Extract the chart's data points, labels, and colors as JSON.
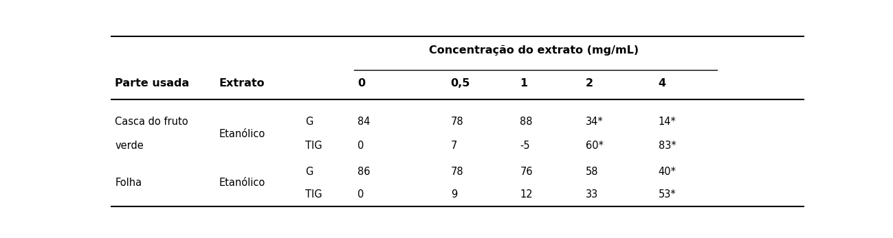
{
  "title": "Concentração do extrato (mg/mL)",
  "col_header_1": "Parte usada",
  "col_header_2": "Extrato",
  "conc_cols": [
    "0",
    "0,5",
    "1",
    "2",
    "4"
  ],
  "rows": [
    {
      "metric": "G",
      "values": [
        "84",
        "78",
        "88",
        "34*",
        "14*"
      ]
    },
    {
      "metric": "TIG",
      "values": [
        "0",
        "7",
        "-5",
        "60*",
        "83*"
      ]
    },
    {
      "metric": "G",
      "values": [
        "86",
        "78",
        "76",
        "58",
        "40*"
      ]
    },
    {
      "metric": "TIG",
      "values": [
        "0",
        "9",
        "12",
        "33",
        "53*"
      ]
    }
  ],
  "parte_texts": [
    "Casca do fruto\nverde",
    "Folha"
  ],
  "extrato_texts": [
    "Etanólico",
    "Etanólico"
  ],
  "bg_color": "#ffffff",
  "text_color": "#000000",
  "line_color": "#000000",
  "figsize": [
    12.99,
    3.47
  ],
  "dpi": 100
}
